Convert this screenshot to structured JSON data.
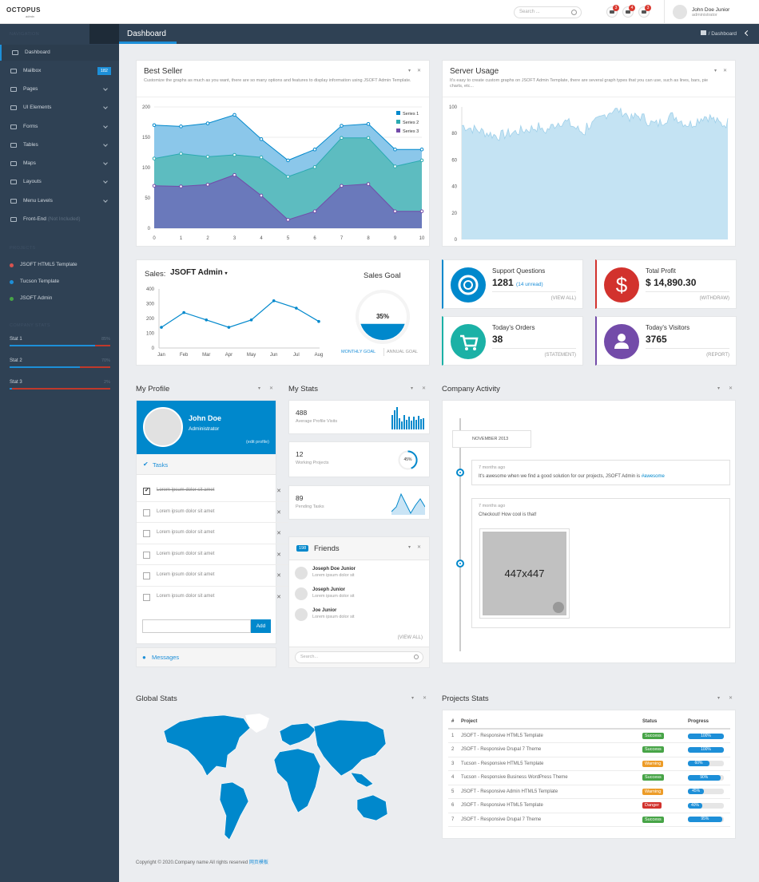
{
  "brand": {
    "name": "OCTOPUS",
    "sub": "admin"
  },
  "header": {
    "search_placeholder": "Search ...",
    "badges": [
      "3",
      "4",
      "3"
    ],
    "user_name": "John Doe Junior",
    "user_role": "administrator"
  },
  "sidebar": {
    "navigation_label": "NAVIGATION",
    "items": [
      {
        "label": "Dashboard",
        "icon": "home-icon"
      },
      {
        "label": "Mailbox",
        "icon": "envelope-icon",
        "badge": "182"
      },
      {
        "label": "Pages",
        "icon": "copy-icon"
      },
      {
        "label": "UI Elements",
        "icon": "tasks-icon"
      },
      {
        "label": "Forms",
        "icon": "edit-icon"
      },
      {
        "label": "Tables",
        "icon": "table-icon"
      },
      {
        "label": "Maps",
        "icon": "map-marker-icon"
      },
      {
        "label": "Layouts",
        "icon": "columns-icon"
      },
      {
        "label": "Menu Levels",
        "icon": "list-icon"
      },
      {
        "label": "Front-End",
        "icon": "external-link-icon",
        "note": "(Not Included)"
      }
    ],
    "projects_label": "PROJECTS",
    "projects": [
      {
        "label": "JSOFT HTML5 Template",
        "color": "#d9534f"
      },
      {
        "label": "Tucson Template",
        "color": "#1d8fd8"
      },
      {
        "label": "JSOFT Admin",
        "color": "#47a447"
      }
    ],
    "stats_label": "COMPANY STATS",
    "stats": [
      {
        "label": "Stat 1",
        "percent": "85%",
        "fraction": 0.85
      },
      {
        "label": "Stat 2",
        "percent": "70%",
        "fraction": 0.7
      },
      {
        "label": "Stat 3",
        "percent": "2%",
        "fraction": 0.02
      }
    ]
  },
  "page": {
    "title": "Dashboard",
    "breadcrumb": "Dashboard"
  },
  "best_seller": {
    "title": "Best Seller",
    "desc": "Customize the graphs as much as you want, there are so many options and features to display information using JSOFT Admin Template."
  },
  "server_usage": {
    "title": "Server Usage",
    "desc": "It's easy to create custom graphs on JSOFT Admin Template, there are several graph types that you can use, such as lines, bars, pie charts, etc..."
  },
  "sales": {
    "label": "Sales:",
    "product": "JSOFT Admin",
    "goal_title": "Sales Goal",
    "goal_value": "35%",
    "goal_fraction": 0.35,
    "monthly": "MONTHLY GOAL",
    "annual": "ANNUAL GOAL"
  },
  "tiles": [
    {
      "title": "Support Questions",
      "value": "1281",
      "sub": "(14 unread)",
      "footer": "(VIEW ALL)",
      "color": "#0088cc",
      "icon": "life-ring-icon"
    },
    {
      "title": "Total Profit",
      "value": "$ 14,890.30",
      "sub": "",
      "footer": "(WITHDRAW)",
      "color": "#d2322d",
      "icon": "dollar-icon"
    },
    {
      "title": "Today's Orders",
      "value": "38",
      "sub": "",
      "footer": "(STATEMENT)",
      "color": "#1bb1a6",
      "icon": "shopping-cart-icon"
    },
    {
      "title": "Today's Visitors",
      "value": "3765",
      "sub": "",
      "footer": "(REPORT)",
      "color": "#734ba9",
      "icon": "user-icon"
    }
  ],
  "profile": {
    "title": "My Profile",
    "name": "John Doe",
    "role": "Administrator",
    "edit": "(edit profile)",
    "tasks_label": "Tasks",
    "tasks": [
      {
        "text": "Lorem ipsum dolor sit amet",
        "done": true
      },
      {
        "text": "Lorem ipsum dolor sit amet",
        "done": false
      },
      {
        "text": "Lorem ipsum dolor sit amet",
        "done": false
      },
      {
        "text": "Lorem ipsum dolor sit amet",
        "done": false
      },
      {
        "text": "Lorem ipsum dolor sit amet",
        "done": false
      },
      {
        "text": "Lorem ipsum dolor sit amet",
        "done": false
      }
    ],
    "add_label": "Add",
    "messages_label": "Messages"
  },
  "mystats": {
    "title": "My Stats",
    "items": [
      {
        "value": "488",
        "label": "Average Profile Visits"
      },
      {
        "value": "12",
        "label": "Working Projects",
        "ring": "45%"
      },
      {
        "value": "89",
        "label": "Pending Tasks"
      }
    ]
  },
  "friends": {
    "title": "Friends",
    "count": "198",
    "view_all": "(VIEW ALL)",
    "search_placeholder": "Search...",
    "list": [
      {
        "name": "Joseph Doe Junior",
        "text": "Lorem ipsum dolor sit"
      },
      {
        "name": "Joseph Junior",
        "text": "Lorem ipsum dolor sit"
      },
      {
        "name": "Joe Junior",
        "text": "Lorem ipsum dolor sit"
      }
    ]
  },
  "activity": {
    "title": "Company Activity",
    "month": "NOVEMBER 2013",
    "posts": [
      {
        "time": "7 months ago",
        "text": "It's awesome when we find a good solution for our projects, JSOFT Admin is ",
        "tag": "#awesome"
      },
      {
        "time": "7 months ago",
        "text": "Checkout! How cool is that!",
        "image": "447x447"
      }
    ]
  },
  "global_stats": {
    "title": "Global Stats"
  },
  "projects_stats": {
    "title": "Projects Stats",
    "headers": [
      "#",
      "Project",
      "Status",
      "Progress"
    ],
    "rows": [
      {
        "n": "1",
        "project": "JSOFT - Responsive HTML5 Template",
        "status": "Success",
        "color": "#47a447",
        "progress": "100%",
        "fraction": 1.0
      },
      {
        "n": "2",
        "project": "JSOFT - Responsive Drupal 7 Theme",
        "status": "Success",
        "color": "#47a447",
        "progress": "100%",
        "fraction": 1.0
      },
      {
        "n": "3",
        "project": "Tucson - Responsive HTML5 Template",
        "status": "Warning",
        "color": "#ed9c28",
        "progress": "60%",
        "fraction": 0.6
      },
      {
        "n": "4",
        "project": "Tucson - Responsive Business WordPress Theme",
        "status": "Success",
        "color": "#47a447",
        "progress": "90%",
        "fraction": 0.9
      },
      {
        "n": "5",
        "project": "JSOFT - Responsive Admin HTML5 Template",
        "status": "Warning",
        "color": "#ed9c28",
        "progress": "45%",
        "fraction": 0.45
      },
      {
        "n": "6",
        "project": "JSOFT - Responsive HTML5 Template",
        "status": "Danger",
        "color": "#d2322d",
        "progress": "40%",
        "fraction": 0.4
      },
      {
        "n": "7",
        "project": "JSOFT - Responsive Drupal 7 Theme",
        "status": "Success",
        "color": "#47a447",
        "progress": "95%",
        "fraction": 0.95
      }
    ]
  },
  "footer": {
    "text": "Copyright © 2020.Company name All rights reserved ",
    "link": "网页模板"
  },
  "chart_data": [
    {
      "type": "area",
      "title": "Best Seller",
      "x": [
        0,
        1,
        2,
        3,
        4,
        5,
        6,
        7,
        8,
        9,
        10
      ],
      "ylim": [
        0,
        200
      ],
      "yticks": [
        "200",
        "150",
        "100",
        "50",
        "0"
      ],
      "xticks": [
        "0",
        "1",
        "2",
        "3",
        "4",
        "5",
        "6",
        "7",
        "8",
        "9",
        "10"
      ],
      "series": [
        {
          "name": "Series 1",
          "color": "#0088cc",
          "values": [
            170,
            168,
            173,
            187,
            147,
            112,
            130,
            169,
            172,
            130,
            130
          ]
        },
        {
          "name": "Series 2",
          "color": "#2baab1",
          "values": [
            115,
            123,
            118,
            121,
            117,
            85,
            101,
            149,
            149,
            102,
            112
          ]
        },
        {
          "name": "Series 3",
          "color": "#734ba9",
          "values": [
            70,
            69,
            72,
            88,
            54,
            14,
            28,
            70,
            73,
            28,
            28
          ]
        }
      ]
    },
    {
      "type": "area",
      "title": "Server Usage",
      "ylim": [
        0,
        100
      ],
      "yticks": [
        "100",
        "80",
        "60",
        "40",
        "20",
        "0"
      ]
    },
    {
      "type": "line",
      "title": "Sales",
      "categories": [
        "Jan",
        "Feb",
        "Mar",
        "Apr",
        "May",
        "Jun",
        "Jul",
        "Aug"
      ],
      "ylim": [
        0,
        400
      ],
      "yticks": [
        "400",
        "300",
        "200",
        "100",
        "0"
      ],
      "values": [
        140,
        240,
        190,
        140,
        190,
        320,
        270,
        180
      ]
    }
  ]
}
